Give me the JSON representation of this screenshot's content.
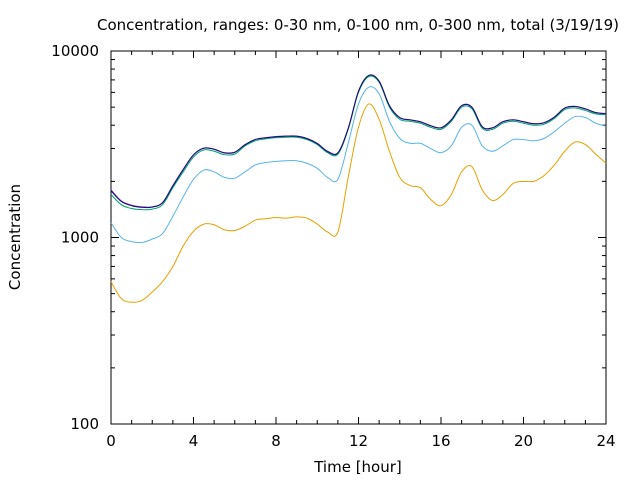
{
  "chart_data": {
    "type": "line",
    "title": "Concentration, ranges: 0-30 nm, 0-100 nm, 0-300 nm, total (3/19/19)",
    "xlabel": "Time [hour]",
    "ylabel": "Concentration",
    "xlim": [
      0,
      24
    ],
    "ylim": [
      100,
      10000
    ],
    "yscale": "log",
    "grid": false,
    "x_ticks": [
      0,
      4,
      8,
      12,
      16,
      20,
      24
    ],
    "y_ticks": [
      100,
      1000,
      10000
    ],
    "x_tick_labels": [
      "0",
      "4",
      "8",
      "12",
      "16",
      "20",
      "24"
    ],
    "y_tick_labels": [
      "100",
      "1000",
      "10000"
    ],
    "x": [
      0,
      0.5,
      1,
      1.5,
      2,
      2.5,
      3,
      3.5,
      4,
      4.5,
      5,
      5.5,
      6,
      6.5,
      7,
      7.5,
      8,
      8.5,
      9,
      9.5,
      10,
      10.5,
      11,
      11.5,
      12,
      12.5,
      13,
      13.5,
      14,
      14.5,
      15,
      15.5,
      16,
      16.5,
      17,
      17.5,
      18,
      18.5,
      19,
      19.5,
      20,
      20.5,
      21,
      21.5,
      22,
      22.5,
      23,
      23.5,
      24
    ],
    "series": [
      {
        "color": "#e8a000",
        "values": [
          580,
          470,
          450,
          460,
          510,
          580,
          700,
          900,
          1080,
          1180,
          1170,
          1100,
          1090,
          1150,
          1240,
          1260,
          1280,
          1270,
          1290,
          1270,
          1180,
          1070,
          1070,
          2100,
          3900,
          5200,
          4300,
          2900,
          2100,
          1900,
          1850,
          1600,
          1480,
          1700,
          2250,
          2400,
          1800,
          1580,
          1700,
          1950,
          2000,
          2000,
          2150,
          2450,
          2900,
          3250,
          3150,
          2800,
          2500
        ]
      },
      {
        "color": "#56b4e9",
        "values": [
          1200,
          1000,
          950,
          940,
          980,
          1050,
          1300,
          1650,
          2050,
          2300,
          2250,
          2100,
          2080,
          2250,
          2450,
          2520,
          2560,
          2580,
          2580,
          2500,
          2350,
          2100,
          2050,
          3200,
          5200,
          6400,
          5900,
          4200,
          3400,
          3200,
          3200,
          3000,
          2850,
          3100,
          3900,
          4000,
          3100,
          2900,
          3100,
          3350,
          3350,
          3300,
          3400,
          3700,
          4100,
          4450,
          4400,
          4100,
          3950
        ]
      },
      {
        "color": "#009e73",
        "values": [
          1700,
          1500,
          1430,
          1410,
          1420,
          1500,
          1850,
          2250,
          2700,
          2950,
          2900,
          2780,
          2800,
          3100,
          3300,
          3380,
          3430,
          3450,
          3450,
          3350,
          3150,
          2850,
          2800,
          3800,
          6000,
          7300,
          6800,
          5000,
          4300,
          4200,
          4100,
          3900,
          3800,
          4200,
          5000,
          4900,
          3850,
          3800,
          4100,
          4200,
          4100,
          4000,
          4050,
          4350,
          4850,
          4950,
          4800,
          4600,
          4550
        ]
      },
      {
        "color": "#9400d3",
        "values": [
          1800,
          1570,
          1490,
          1460,
          1460,
          1540,
          1900,
          2320,
          2780,
          3020,
          2980,
          2850,
          2870,
          3150,
          3360,
          3430,
          3480,
          3500,
          3500,
          3400,
          3200,
          2900,
          2850,
          3850,
          6100,
          7400,
          6900,
          5100,
          4400,
          4280,
          4180,
          3980,
          3880,
          4280,
          5100,
          5000,
          3930,
          3880,
          4180,
          4280,
          4180,
          4080,
          4130,
          4430,
          4950,
          5050,
          4900,
          4680,
          4620
        ]
      },
      {
        "color": "#0a1a6a",
        "values": [
          1780,
          1560,
          1480,
          1450,
          1455,
          1535,
          1890,
          2310,
          2770,
          3010,
          2970,
          2840,
          2860,
          3140,
          3350,
          3420,
          3470,
          3490,
          3490,
          3390,
          3190,
          2890,
          2840,
          3840,
          6080,
          7400,
          6880,
          5090,
          4390,
          4270,
          4170,
          3970,
          3870,
          4270,
          5090,
          4990,
          3920,
          3870,
          4170,
          4270,
          4170,
          4070,
          4120,
          4420,
          4940,
          5040,
          4890,
          4670,
          4610
        ]
      }
    ]
  }
}
